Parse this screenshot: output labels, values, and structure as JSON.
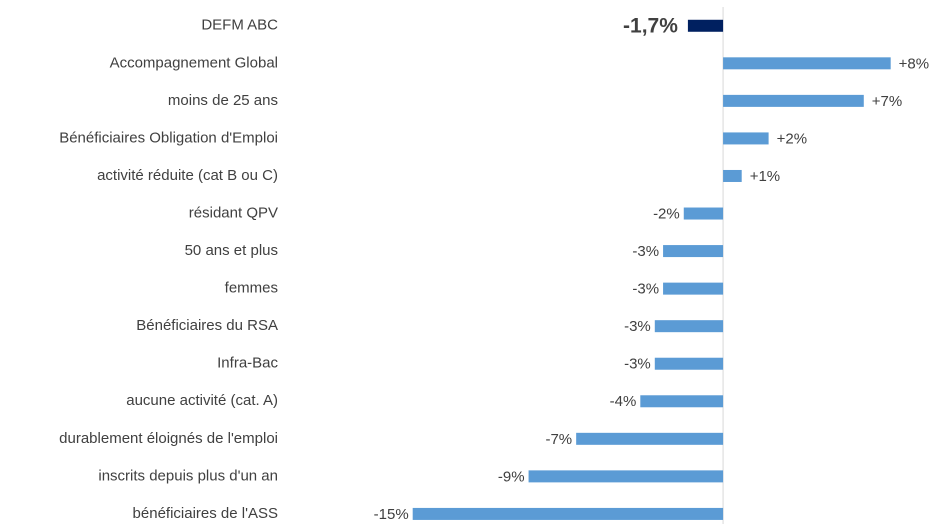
{
  "chart_data": {
    "type": "barh",
    "categories": [
      "DEFM ABC",
      "Accompagnement Global",
      "moins de 25 ans",
      "Bénéficiaires Obligation d'Emploi",
      "activité réduite (cat B ou C)",
      "résidant QPV",
      "50 ans et plus",
      "femmes",
      "Bénéficiaires du RSA",
      "Infra-Bac",
      "aucune activité (cat. A)",
      "durablement éloignés de l'emploi",
      "inscrits depuis plus d'un an",
      "bénéficiaires de l'ASS"
    ],
    "values": [
      -1.7,
      8.1,
      6.8,
      2.2,
      0.9,
      -1.9,
      -2.9,
      -2.9,
      -3.3,
      -3.3,
      -4.0,
      -7.1,
      -9.4,
      -15.0
    ],
    "value_labels": [
      "-1,7%",
      "+8%",
      "+7%",
      "+2%",
      "+1%",
      "-2%",
      "-3%",
      "-3%",
      "-3%",
      "-3%",
      "-4%",
      "-7%",
      "-9%",
      "-15%"
    ],
    "colors": [
      "#002060",
      "#5b9bd5",
      "#5b9bd5",
      "#5b9bd5",
      "#5b9bd5",
      "#5b9bd5",
      "#5b9bd5",
      "#5b9bd5",
      "#5b9bd5",
      "#5b9bd5",
      "#5b9bd5",
      "#5b9bd5",
      "#5b9bd5",
      "#5b9bd5"
    ],
    "xlim": [
      -16,
      10
    ]
  }
}
